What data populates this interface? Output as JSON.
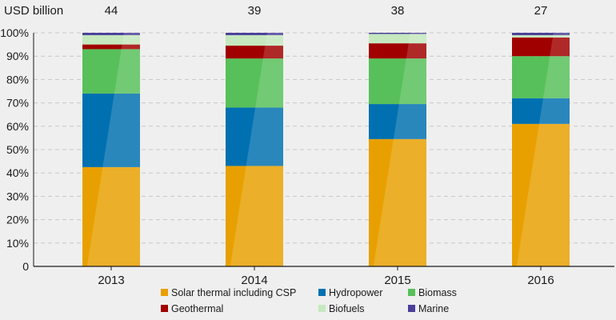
{
  "chart_data": {
    "type": "bar",
    "stacked": true,
    "normalized": true,
    "unit_label": "USD billion",
    "categories": [
      "2013",
      "2014",
      "2015",
      "2016"
    ],
    "totals": [
      "44",
      "39",
      "38",
      "27"
    ],
    "y_ticks": [
      "0",
      "10%",
      "20%",
      "30%",
      "40%",
      "50%",
      "60%",
      "70%",
      "80%",
      "90%",
      "100%"
    ],
    "ylim": [
      0,
      100
    ],
    "grid": true,
    "series": [
      {
        "name": "Solar thermal including CSP",
        "color": "#E8A000",
        "values": [
          42.5,
          43,
          54.5,
          61
        ]
      },
      {
        "name": "Hydropower",
        "color": "#0070B0",
        "values": [
          31.5,
          25,
          15,
          11
        ]
      },
      {
        "name": "Biomass",
        "color": "#57C05A",
        "values": [
          19,
          21,
          19.5,
          18
        ]
      },
      {
        "name": "Geothermal",
        "color": "#A00000",
        "values": [
          2,
          5.5,
          6.5,
          8
        ]
      },
      {
        "name": "Biofuels",
        "color": "#C5E8BE",
        "values": [
          4,
          4.5,
          4,
          1
        ]
      },
      {
        "name": "Marine",
        "color": "#4A3F9A",
        "values": [
          1,
          1,
          0.5,
          1
        ]
      }
    ],
    "legend_position": "bottom"
  }
}
